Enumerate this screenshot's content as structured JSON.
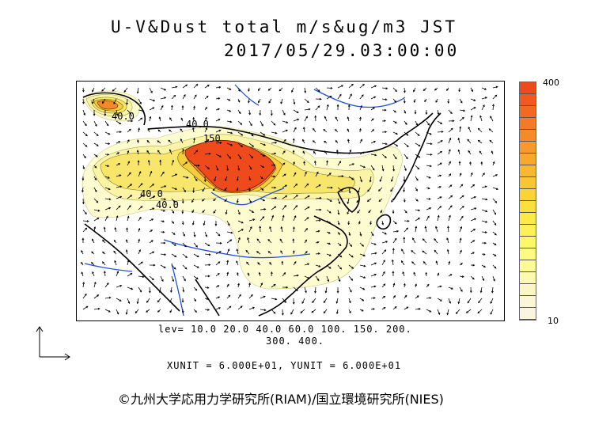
{
  "title": {
    "line1": "U-V&Dust total m/s&ug/m3 JST",
    "line2": "2017/05/29.03:00:00"
  },
  "map": {
    "contour_labels": [
      "40.0",
      "40.0",
      "150",
      "40.0",
      "40.0"
    ],
    "fill_colors": {
      "level_10": "#fdfbd0",
      "level_20": "#fbf3a6",
      "level_40": "#f8e66a",
      "level_60": "#f5cd3a",
      "level_150": "#f08a2c",
      "level_300": "#ef4a1c"
    },
    "river_color": "#1f4fd8",
    "coast_color": "#000000"
  },
  "colorbar": {
    "max_label": "400",
    "min_label": "10",
    "colors": [
      "#ef4a1c",
      "#f05a1e",
      "#f26a22",
      "#f47a26",
      "#f58a28",
      "#f69a2b",
      "#f7a92e",
      "#f8b830",
      "#f9c633",
      "#fad437",
      "#fbe03c",
      "#fcea45",
      "#fdf255",
      "#fef869",
      "#fefb80",
      "#fdfb98",
      "#fcf9b0",
      "#fbf7c4",
      "#fbf6d4",
      "#fbf5e0"
    ]
  },
  "levels": {
    "line1": "lev= 10.0 20.0 40.0 60.0 100. 150. 200.",
    "line2": "300. 400."
  },
  "units_text": "XUNIT = 6.000E+01, YUNIT = 6.000E+01",
  "credit": "©九州大学応用力学研究所(RIAM)/国立環境研究所(NIES)"
}
